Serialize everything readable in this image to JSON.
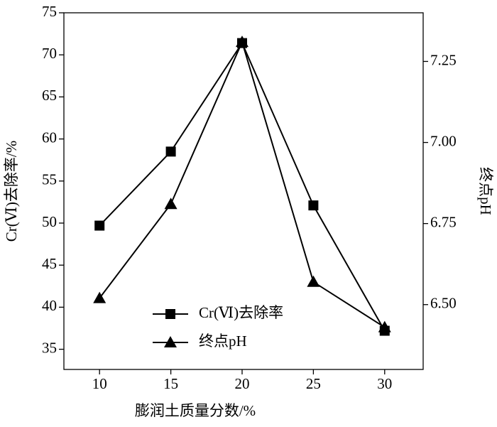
{
  "chart_data": {
    "type": "line",
    "x_label": "膨润土质量分数/%",
    "y_label": "Cr(Ⅵ)去除率/%",
    "y2_label": "终点pH",
    "x": [
      10,
      15,
      20,
      25,
      30
    ],
    "xlim": [
      7.5,
      32.7
    ],
    "xticks": [
      10,
      15,
      20,
      25,
      30
    ],
    "ylim": [
      32.6,
      75
    ],
    "yticks": [
      35,
      40,
      45,
      50,
      55,
      60,
      65,
      70,
      75
    ],
    "y2lim": [
      6.3,
      7.4
    ],
    "y2ticks": [
      {
        "value": 6.5,
        "label": "6.50"
      },
      6.75,
      {
        "value": 7,
        "label": "7.00"
      },
      7.25
    ],
    "legend_loc": "lower center",
    "series": [
      {
        "name": "Cr(Ⅵ)去除率",
        "color": "#000000",
        "marker": "square",
        "values": [
          49.7,
          58.5,
          71.4,
          52.1,
          37.2
        ]
      },
      {
        "name": "终点pH",
        "color": "#000000",
        "marker": "triangle",
        "axis": "y2",
        "values": [
          6.52,
          6.81,
          7.31,
          6.57,
          6.43
        ]
      }
    ]
  }
}
